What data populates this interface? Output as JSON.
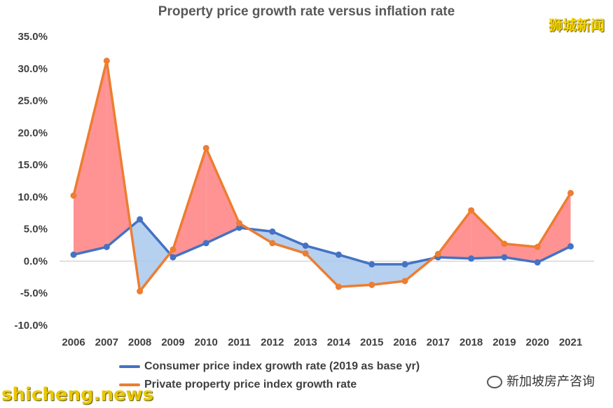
{
  "brand_top": "狮城新闻",
  "brand_bottom": "shicheng.news",
  "wechat_label": "新加坡房产咨询",
  "chart_data": {
    "type": "line",
    "title": "Property price growth rate versus inflation rate",
    "categories": [
      "2006",
      "2007",
      "2008",
      "2009",
      "2010",
      "2011",
      "2012",
      "2013",
      "2014",
      "2015",
      "2016",
      "2017",
      "2018",
      "2019",
      "2020",
      "2021"
    ],
    "yticks": [
      "35.0%",
      "30.0%",
      "25.0%",
      "20.0%",
      "15.0%",
      "10.0%",
      "5.0%",
      "0.0%",
      "-5.0%",
      "-10.0%"
    ],
    "ylim": [
      -10,
      35
    ],
    "series": [
      {
        "name": "Consumer price index growth rate (2019 as base yr)",
        "color": "#4472c4",
        "values": [
          1.0,
          2.2,
          6.5,
          0.6,
          2.8,
          5.2,
          4.6,
          2.4,
          1.0,
          -0.5,
          -0.5,
          0.6,
          0.4,
          0.6,
          -0.2,
          2.3
        ]
      },
      {
        "name": "Private property price index growth rate",
        "color": "#ed7d31",
        "values": [
          10.2,
          31.2,
          -4.7,
          1.8,
          17.6,
          5.9,
          2.8,
          1.2,
          -4.0,
          -3.7,
          -3.1,
          1.1,
          7.9,
          2.7,
          2.2,
          10.6
        ]
      }
    ],
    "fill_above_color": "#ff8080",
    "fill_below_color": "#a9c8ec"
  }
}
